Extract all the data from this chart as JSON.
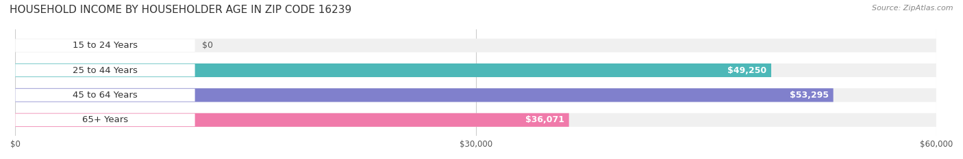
{
  "title": "HOUSEHOLD INCOME BY HOUSEHOLDER AGE IN ZIP CODE 16239",
  "source": "Source: ZipAtlas.com",
  "categories": [
    "15 to 24 Years",
    "25 to 44 Years",
    "45 to 64 Years",
    "65+ Years"
  ],
  "values": [
    0,
    49250,
    53295,
    36071
  ],
  "bar_colors": [
    "#c9a8d4",
    "#4db8b8",
    "#8080cc",
    "#f07aaa"
  ],
  "bg_track_color": "#f0f0f0",
  "value_labels": [
    "$0",
    "$49,250",
    "$53,295",
    "$36,071"
  ],
  "xlim": [
    0,
    60000
  ],
  "xticks": [
    0,
    30000,
    60000
  ],
  "xtick_labels": [
    "$0",
    "$30,000",
    "$60,000"
  ],
  "title_fontsize": 11,
  "source_fontsize": 8,
  "label_fontsize": 9.5,
  "value_fontsize": 9,
  "bar_height": 0.55,
  "figsize": [
    14.06,
    2.33
  ],
  "dpi": 100
}
